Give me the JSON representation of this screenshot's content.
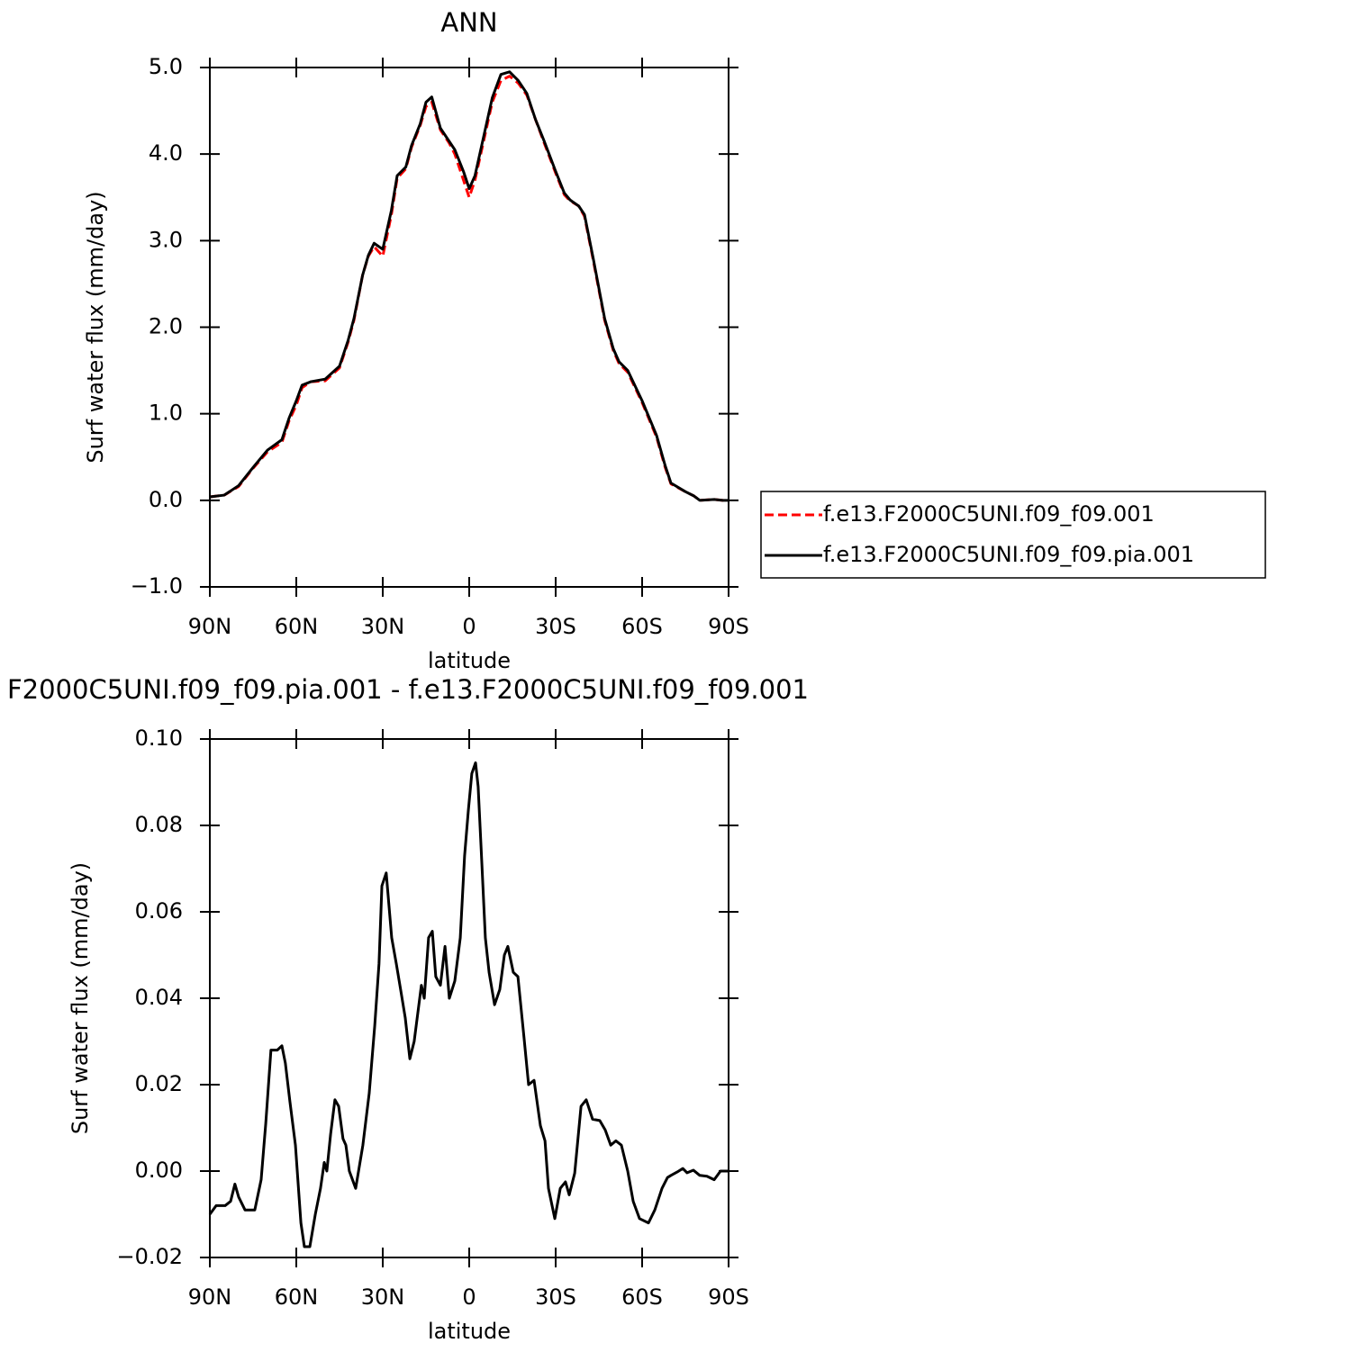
{
  "chart_data": [
    {
      "type": "line",
      "title": "ANN",
      "xlabel": "latitude",
      "ylabel": "Surf water flux (mm/day)",
      "x": [
        90,
        85,
        80,
        75,
        70,
        65,
        62.5,
        60,
        58,
        55,
        50,
        45,
        42,
        40,
        37,
        35,
        33,
        30,
        27,
        25,
        22,
        20,
        17,
        15,
        13,
        10,
        7,
        5,
        2,
        0,
        -2,
        -5,
        -8,
        -11,
        -14,
        -17,
        -20,
        -23,
        -26,
        -30,
        -33,
        -35,
        -38,
        -40,
        -43,
        -47,
        -50,
        -52,
        -55,
        -60,
        -65,
        -68,
        -70,
        -75,
        -78,
        -80,
        -85,
        -88,
        -90
      ],
      "series": [
        {
          "name": "f.e13.F2000C5UNI.f09_f09.001",
          "color": "#ff0000",
          "style": "dashed",
          "values": [
            0.04,
            0.06,
            0.16,
            0.37,
            0.56,
            0.67,
            0.92,
            1.1,
            1.3,
            1.37,
            1.38,
            1.53,
            1.83,
            2.08,
            2.6,
            2.82,
            2.93,
            2.82,
            3.3,
            3.72,
            3.83,
            4.08,
            4.33,
            4.55,
            4.6,
            4.28,
            4.13,
            4.0,
            3.7,
            3.5,
            3.7,
            4.15,
            4.6,
            4.85,
            4.9,
            4.82,
            4.68,
            4.4,
            4.13,
            3.78,
            3.53,
            3.46,
            3.4,
            3.28,
            2.78,
            2.08,
            1.73,
            1.58,
            1.48,
            1.13,
            0.73,
            0.38,
            0.19,
            0.1,
            0.05,
            0.0,
            0.01,
            0.0,
            0.0
          ]
        },
        {
          "name": "f.e13.F2000C5UNI.f09_f09.pia.001",
          "color": "#000000",
          "style": "solid",
          "values": [
            0.04,
            0.06,
            0.17,
            0.38,
            0.58,
            0.7,
            0.95,
            1.15,
            1.33,
            1.37,
            1.4,
            1.55,
            1.85,
            2.1,
            2.6,
            2.83,
            2.97,
            2.9,
            3.35,
            3.75,
            3.85,
            4.1,
            4.35,
            4.6,
            4.66,
            4.3,
            4.15,
            4.05,
            3.8,
            3.6,
            3.75,
            4.2,
            4.65,
            4.92,
            4.95,
            4.85,
            4.7,
            4.4,
            4.15,
            3.8,
            3.55,
            3.47,
            3.4,
            3.3,
            2.8,
            2.1,
            1.75,
            1.6,
            1.5,
            1.15,
            0.75,
            0.4,
            0.2,
            0.1,
            0.05,
            0.0,
            0.01,
            0.0,
            0.0
          ]
        }
      ],
      "xlim": [
        90,
        -90
      ],
      "xticks": [
        {
          "value": 90,
          "label": "90N"
        },
        {
          "value": 60,
          "label": "60N"
        },
        {
          "value": 30,
          "label": "30N"
        },
        0,
        {
          "value": -30,
          "label": "30S"
        },
        {
          "value": -60,
          "label": "60S"
        },
        {
          "value": -90,
          "label": "90S"
        }
      ],
      "ylim": [
        -1,
        5
      ],
      "yticks": [
        {
          "value": -1,
          "label": "−1.0"
        },
        {
          "value": 0,
          "label": "0.0"
        },
        {
          "value": 1,
          "label": "1.0"
        },
        {
          "value": 2,
          "label": "2.0"
        },
        {
          "value": 3,
          "label": "3.0"
        },
        {
          "value": 4,
          "label": "4.0"
        },
        {
          "value": 5,
          "label": "5.0"
        }
      ],
      "legend": "right"
    },
    {
      "type": "line",
      "title": "F2000C5UNI.f09_f09.pia.001 - f.e13.F2000C5UNI.f09_f09.001",
      "xlabel": "latitude",
      "ylabel": "Surf water flux (mm/day)",
      "x": [
        90,
        87.8,
        84.7,
        82.8,
        81.3,
        80,
        77.8,
        74.4,
        72.2,
        70.6,
        68.8,
        66.6,
        65,
        63.8,
        62.2,
        60.3,
        58.4,
        57.2,
        55.3,
        53.4,
        51.6,
        50.3,
        49.4,
        48.1,
        46.6,
        45.3,
        43.8,
        42.8,
        41.6,
        39.4,
        36.9,
        34.7,
        32.8,
        31.3,
        30.3,
        28.8,
        26.9,
        25.3,
        23.8,
        22.2,
        20.6,
        19.1,
        16.6,
        15.6,
        14.1,
        12.8,
        11.6,
        10,
        8.4,
        6.9,
        5,
        3.1,
        1.6,
        0.3,
        -0.9,
        -2.2,
        -3.1,
        -4.4,
        -5.6,
        -6.9,
        -8.8,
        -10.6,
        -12.2,
        -13.4,
        -15.3,
        -16.9,
        -19,
        -20.6,
        -22.5,
        -24.7,
        -26.3,
        -27.5,
        -29.7,
        -31.6,
        -33.4,
        -34.7,
        -36.6,
        -38.8,
        -40.6,
        -42.8,
        -45.3,
        -47.2,
        -49.1,
        -50.9,
        -52.8,
        -55,
        -56.9,
        -59.1,
        -62.2,
        -64.4,
        -66.9,
        -68.8,
        -70,
        -72.2,
        -74.1,
        -75.6,
        -77.8,
        -80,
        -82.5,
        -85,
        -87.2,
        -90
      ],
      "series": [
        {
          "color": "#000000",
          "style": "solid",
          "values": [
            -0.01,
            -0.008,
            -0.008,
            -0.007,
            -0.003,
            -0.006,
            -0.009,
            -0.009,
            -0.002,
            0.011,
            0.028,
            0.028,
            0.029,
            0.025,
            0.016,
            0.006,
            -0.012,
            -0.0175,
            -0.0175,
            -0.01,
            -0.004,
            0.002,
            0.0,
            0.0085,
            0.0165,
            0.015,
            0.0075,
            0.006,
            0.0,
            -0.004,
            0.006,
            0.018,
            0.0335,
            0.048,
            0.066,
            0.069,
            0.054,
            0.048,
            0.042,
            0.0355,
            0.026,
            0.03,
            0.043,
            0.04,
            0.054,
            0.0555,
            0.045,
            0.043,
            0.052,
            0.04,
            0.044,
            0.054,
            0.073,
            0.0835,
            0.092,
            0.0945,
            0.089,
            0.071,
            0.054,
            0.046,
            0.0385,
            0.042,
            0.05,
            0.052,
            0.046,
            0.045,
            0.031,
            0.02,
            0.021,
            0.0105,
            0.007,
            -0.004,
            -0.011,
            -0.004,
            -0.0025,
            -0.0055,
            -0.0005,
            0.015,
            0.0165,
            0.012,
            0.0117,
            0.0095,
            0.006,
            0.007,
            0.006,
            0.0,
            -0.007,
            -0.011,
            -0.012,
            -0.009,
            -0.004,
            -0.0015,
            -0.001,
            -0.0002,
            0.0006,
            -0.0004,
            0.0002,
            -0.001,
            -0.0012,
            -0.002,
            0.0,
            0.0
          ]
        }
      ],
      "xlim": [
        90,
        -90
      ],
      "xticks": [
        {
          "value": 90,
          "label": "90N"
        },
        {
          "value": 60,
          "label": "60N"
        },
        {
          "value": 30,
          "label": "30N"
        },
        0,
        {
          "value": -30,
          "label": "30S"
        },
        {
          "value": -60,
          "label": "60S"
        },
        {
          "value": -90,
          "label": "90S"
        }
      ],
      "ylim": [
        -0.02,
        0.1
      ],
      "yticks": [
        {
          "value": -0.02,
          "label": "−0.02"
        },
        {
          "value": 0,
          "label": "0.00"
        },
        {
          "value": 0.02,
          "label": "0.02"
        },
        {
          "value": 0.04,
          "label": "0.04"
        },
        {
          "value": 0.06,
          "label": "0.06"
        },
        {
          "value": 0.08,
          "label": "0.08"
        },
        {
          "value": 0.1,
          "label": "0.10"
        }
      ]
    }
  ]
}
